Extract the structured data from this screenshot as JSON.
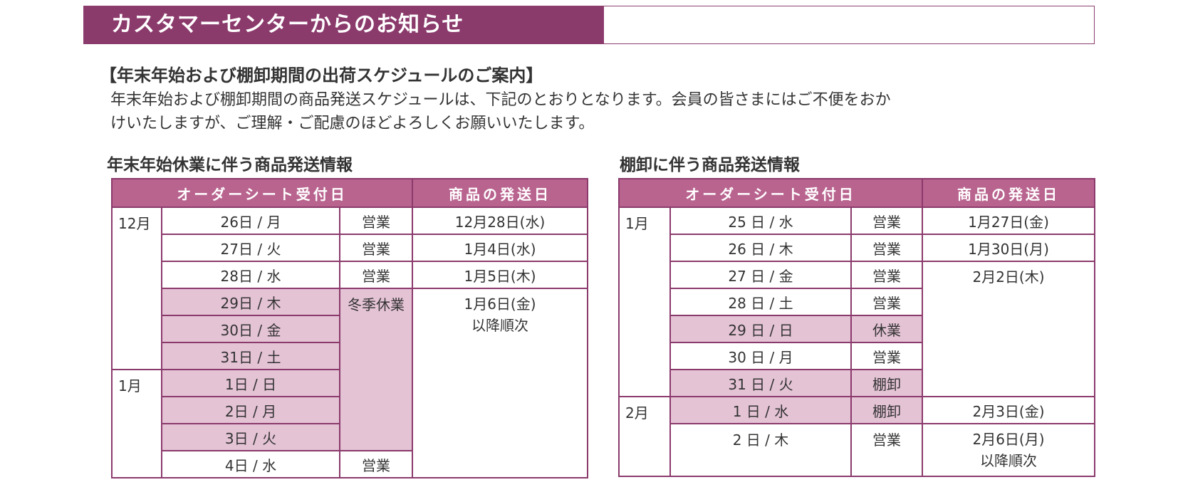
{
  "banner": {
    "title": "カスタマーセンターからのお知らせ"
  },
  "notice": {
    "heading": "【年末年始および棚卸期間の出荷スケジュールのご案内】",
    "body_line1": "年末年始および棚卸期間の商品発送スケジュールは、下記のとおりとなります。会員の皆さまにはご不便をおか",
    "body_line2": "けいたしますが、ご理解・ご配慮のほどよろしくお願いいたします。"
  },
  "year_end": {
    "title": "年末年始休業に伴う商品発送情報",
    "header_order": "オーダーシート受付日",
    "header_ship": "商品の発送日",
    "months": [
      "12月",
      "1月"
    ],
    "rows": [
      {
        "day": "26日 / 月",
        "status": "営業",
        "ship": "12月28日(水)"
      },
      {
        "day": "27日 / 火",
        "status": "営業",
        "ship": "1月4日(水)"
      },
      {
        "day": "28日 / 水",
        "status": "営業",
        "ship": "1月5日(木)"
      },
      {
        "day": "29日 / 木"
      },
      {
        "day": "30日 / 金"
      },
      {
        "day": "31日 / 土"
      },
      {
        "day": "1日 / 日"
      },
      {
        "day": "2日 / 月"
      },
      {
        "day": "3日 / 火"
      },
      {
        "day": "4日 / 水",
        "status": "営業"
      }
    ],
    "holiday_status": "冬季休業",
    "holiday_ship": "1月6日(金)",
    "holiday_ship_note": "以降順次"
  },
  "inventory": {
    "title": "棚卸に伴う商品発送情報",
    "header_order": "オーダーシート受付日",
    "header_ship": "商品の発送日",
    "months": [
      "1月",
      "2月"
    ],
    "rows": [
      {
        "day": "25 日 / 水",
        "status": "営業",
        "ship": "1月27日(金)"
      },
      {
        "day": "26 日 / 木",
        "status": "営業",
        "ship": "1月30日(月)"
      },
      {
        "day": "27 日 / 金",
        "status": "営業",
        "ship": "2月2日(木)"
      },
      {
        "day": "28 日 / 土",
        "status": "営業"
      },
      {
        "day": "29 日 / 日",
        "status": "休業"
      },
      {
        "day": "30 日 / 月",
        "status": "営業"
      },
      {
        "day": "31 日 / 火",
        "status": "棚卸"
      },
      {
        "day": "1 日 / 水",
        "status": "棚卸",
        "ship": "2月3日(金)"
      },
      {
        "day": "2 日 / 木",
        "status": "営業",
        "ship": "2月6日(月)"
      }
    ],
    "last_ship_note": "以降順次"
  },
  "colors": {
    "brand": "#8b3a6c",
    "header": "#b9648f",
    "holiday": "#e4c3d5"
  }
}
